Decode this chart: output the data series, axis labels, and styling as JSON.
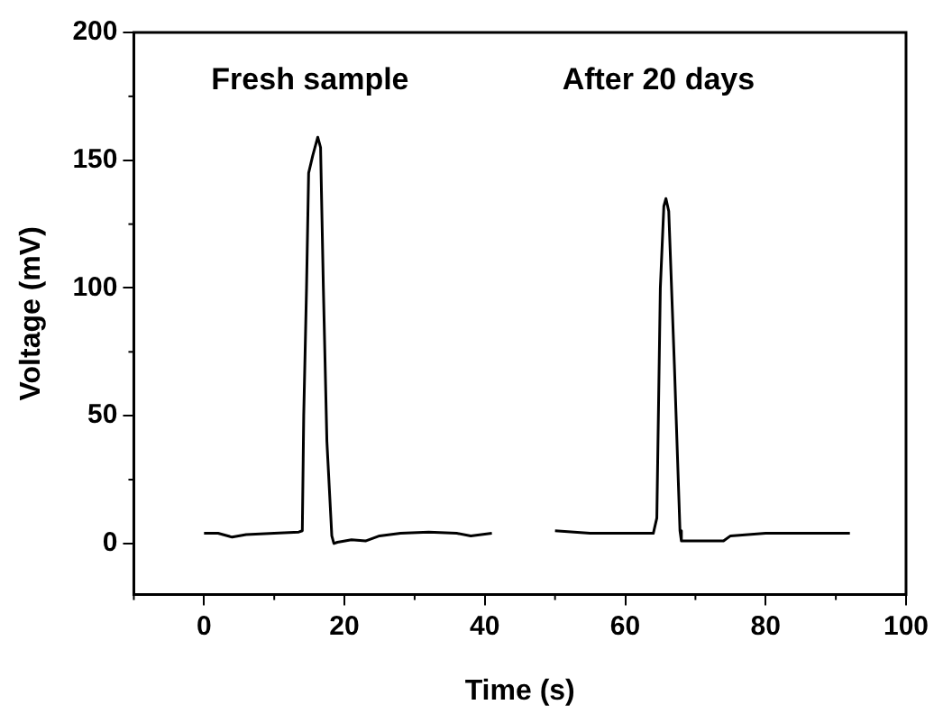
{
  "chart_data": {
    "type": "line",
    "xlabel": "Time (s)",
    "ylabel": "Voltage (mV)",
    "xlim": [
      -10,
      100
    ],
    "xticks": [
      0,
      20,
      40,
      60,
      80,
      100
    ],
    "ylim": [
      -20,
      200
    ],
    "yticks": [
      0,
      50,
      100,
      150,
      200
    ],
    "grid": false,
    "legend": false,
    "marker": "none",
    "line_style": "solid",
    "series": [
      {
        "color": "#000000",
        "x": [
          0,
          2,
          4,
          6,
          10,
          13.5,
          14,
          14.2,
          14.6,
          14.9,
          15.5,
          16.2,
          16.6,
          17,
          17.5,
          18.2,
          18.5,
          19,
          21,
          23,
          25,
          28,
          32,
          36,
          38,
          41
        ],
        "values": [
          4,
          4,
          2.5,
          3.5,
          4,
          4.5,
          5,
          50,
          100,
          145,
          152,
          159,
          155,
          100,
          40,
          3,
          0,
          0.5,
          1.5,
          1,
          3,
          4,
          4.5,
          4,
          3,
          4
        ]
      },
      {
        "color": "#000000",
        "x": [
          50,
          55,
          60,
          64,
          64.5,
          65,
          65.5,
          65.8,
          66.2,
          67,
          67.8,
          68,
          70,
          74,
          75,
          80,
          86,
          92
        ],
        "values": [
          5,
          4,
          4,
          4,
          10,
          100,
          132,
          135,
          130,
          70,
          5,
          1,
          1,
          1,
          3,
          4,
          4,
          4
        ]
      }
    ],
    "annotations": [
      "Fresh sample",
      "After 20 days"
    ]
  }
}
